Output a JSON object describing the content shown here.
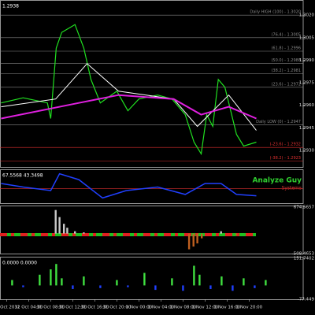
{
  "chart_data": [
    {
      "type": "line",
      "title": "1.2938",
      "xlim": [
        -1.2,
        53.8
      ],
      "xticks": [
        {
          "value": 0,
          "label": "31 Oct 2012"
        },
        {
          "value": 4,
          "label": "31 Oct 04:00"
        },
        {
          "value": 8,
          "label": "31 Oct 08:00"
        },
        {
          "value": 12,
          "label": "31 Oct 12:00"
        },
        {
          "value": 16,
          "label": "31 Oct 16:00"
        },
        {
          "value": 20,
          "label": "31 Oct 20:00"
        },
        {
          "value": 24,
          "label": "1 Nov 00:00"
        },
        {
          "value": 28,
          "label": "1 Nov 04:00"
        },
        {
          "value": 32,
          "label": "1 Nov 08:00"
        },
        {
          "value": 36,
          "label": "1 Nov 12:00"
        },
        {
          "value": 40,
          "label": "1 Nov 16:00"
        },
        {
          "value": 44,
          "label": "1 Nov 20:00"
        }
      ],
      "ylim": [
        1.2919,
        1.3029
      ],
      "yticks": [
        {
          "value": 1.302,
          "label": "1.3020"
        },
        1.3005,
        {
          "value": 1.299,
          "label": "1.2990"
        },
        1.2975,
        {
          "value": 1.296,
          "label": "1.2960"
        },
        1.2945,
        {
          "value": 1.293,
          "label": "1.2930"
        }
      ],
      "levels": [
        {
          "label": "Daily HIGH (100) - 1.3020",
          "value": 1.302,
          "color": "#888"
        },
        {
          "label": "(76.4) - 1.3005",
          "value": 1.3005,
          "color": "#888"
        },
        {
          "label": "(61.8) - 1.2996",
          "value": 1.2996,
          "color": "#888"
        },
        {
          "label": "(50.0) - 1.2988",
          "value": 1.2988,
          "color": "#888"
        },
        {
          "label": "(38.2) - 1.2981",
          "value": 1.2981,
          "color": "#888"
        },
        {
          "label": "(23.6) - 1.2972",
          "value": 1.2972,
          "color": "#888"
        },
        {
          "label": "Daily LOW (0) - 1.2947",
          "value": 1.2947,
          "color": "#888"
        },
        {
          "label": "(-23.6) - 1.2932",
          "value": 1.2932,
          "color": "#e03030"
        },
        {
          "label": "(-38.2) - 1.2923",
          "value": 1.2923,
          "color": "#e03030"
        }
      ],
      "series": [
        {
          "color": "#20e020",
          "width": 1.2,
          "x": [
            -1,
            3,
            7.4,
            8,
            9,
            10,
            12.4,
            14,
            15.3,
            17,
            19,
            20,
            22,
            24,
            27.4,
            30,
            32.4,
            34,
            35.3,
            36.3,
            37.4,
            38.4,
            39.6,
            40.3,
            41.7,
            43,
            45.3
          ],
          "values": [
            1.29616,
            1.2965,
            1.29616,
            1.29512,
            1.29981,
            1.30085,
            1.30137,
            1.29981,
            1.29772,
            1.29616,
            1.29668,
            1.29694,
            1.29564,
            1.29642,
            1.29668,
            1.29642,
            1.29538,
            1.29355,
            1.29277,
            1.29538,
            1.2946,
            1.29772,
            1.2972,
            1.29616,
            1.29407,
            1.29329,
            1.29355
          ]
        },
        {
          "color": "#ffffff",
          "width": 1,
          "x": [
            -1,
            8.9,
            14.6,
            20.3,
            30.3,
            34.6,
            40.3,
            45.3
          ],
          "values": [
            1.2959,
            1.29642,
            1.29877,
            1.29694,
            1.29642,
            1.2946,
            1.29668,
            1.29433
          ]
        },
        {
          "color": "#e020e0",
          "width": 2,
          "x": [
            -1,
            13.1,
            20.3,
            30.3,
            35.3,
            40.3,
            45.3
          ],
          "values": [
            1.29512,
            1.29616,
            1.29668,
            1.29642,
            1.29538,
            1.2959,
            1.29512
          ]
        }
      ]
    },
    {
      "type": "line",
      "title": "67.5568 43.3498",
      "annotations": [
        "Analyze Guy",
        "Systems"
      ],
      "ylim": [
        0,
        100
      ],
      "levels": [
        {
          "value": 45,
          "color": "#e03030"
        }
      ],
      "series": [
        {
          "color": "#2040ff",
          "width": 1.5,
          "x": [
            -1,
            3,
            8,
            9.6,
            13.1,
            17.4,
            21.7,
            27.4,
            32.4,
            36,
            38.9,
            41.7,
            45.3
          ],
          "values": [
            61,
            50,
            39,
            91,
            73,
            16,
            39,
            50,
            27,
            61,
            61,
            27,
            23
          ]
        }
      ]
    },
    {
      "type": "bar",
      "ylim": [
        -508.4653,
        674.5657
      ],
      "yticks": [
        674.5657,
        -508.4653
      ],
      "up_color": "#c8c8c8",
      "down_color": "#c06020",
      "series": [
        {
          "x": [
            8.9,
            9.6,
            10.4,
            11,
            12.4,
            14,
            33.1,
            33.9,
            34.6,
            35.4,
            38.9,
            41.7
          ],
          "values": [
            600,
            420,
            250,
            150,
            60,
            30,
            -400,
            -330,
            -250,
            -120,
            60,
            -40
          ]
        }
      ]
    },
    {
      "type": "bar",
      "title": "0.0000 0.0000",
      "ylim": [
        -77.449,
        151.7402
      ],
      "yticks": [
        151.7402,
        -77.449
      ],
      "up_color": "#40e040",
      "down_color": "#2040ff",
      "series": [
        {
          "x": [
            1,
            3,
            6,
            8,
            9,
            10,
            12,
            14,
            17,
            20,
            22,
            25,
            27,
            30,
            32,
            34,
            35,
            37,
            39,
            41,
            43,
            45,
            47
          ],
          "values": [
            30,
            -10,
            60,
            90,
            120,
            40,
            -20,
            50,
            -15,
            30,
            -10,
            70,
            -25,
            40,
            -30,
            110,
            60,
            -20,
            50,
            -30,
            40,
            -15,
            30
          ]
        }
      ]
    }
  ]
}
